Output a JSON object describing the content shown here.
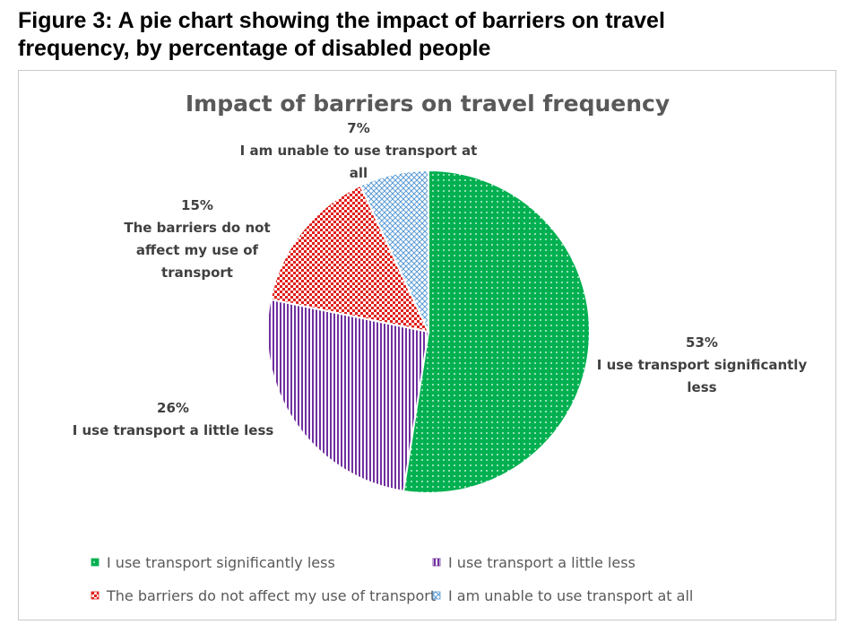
{
  "figure": {
    "caption_line1": "Figure 3: A pie chart showing the impact of barriers on travel",
    "caption_line2": "frequency, by percentage of disabled people"
  },
  "chart_data": {
    "type": "pie",
    "title": "Impact of barriers on travel frequency",
    "slices": [
      {
        "label": "I use transport significantly less",
        "value": 53,
        "value_label": "53%",
        "label_lines": [
          "I use transport significantly",
          "less"
        ],
        "color": "#00b050",
        "pattern": "dots"
      },
      {
        "label": "I use transport a little less",
        "value": 26,
        "value_label": "26%",
        "label_lines": [
          "I use transport a little less"
        ],
        "color": "#7030a0",
        "pattern": "vertical-lines"
      },
      {
        "label": "The barriers do not affect my use of transport",
        "value": 15,
        "value_label": "15%",
        "label_lines": [
          "The barriers do not",
          "affect my use of",
          "transport"
        ],
        "color": "#e0201c",
        "pattern": "checker"
      },
      {
        "label": "I am unable to use transport at all",
        "value": 7,
        "value_label": "7%",
        "label_lines": [
          "I am unable to use transport at",
          "all"
        ],
        "color": "#5b9bd5",
        "pattern": "crosshatch"
      }
    ],
    "legend": {
      "position": "bottom",
      "items": [
        "I use transport significantly less",
        "I use transport a little less",
        "The barriers do not affect my use of transport",
        "I am unable to use transport at all"
      ]
    }
  }
}
